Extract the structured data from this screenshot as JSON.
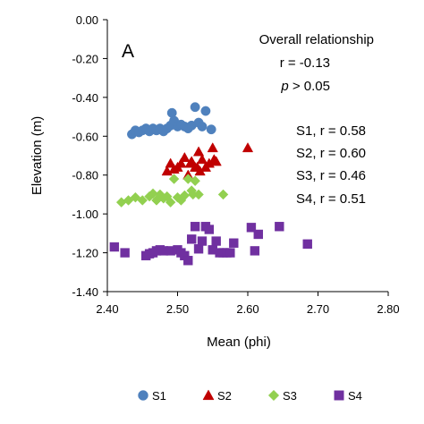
{
  "chart_data": {
    "type": "scatter",
    "panel_label": "A",
    "xlabel": "Mean (phi)",
    "ylabel": "Elevation (m)",
    "xlim": [
      2.4,
      2.8
    ],
    "ylim": [
      -1.4,
      0.0
    ],
    "x_ticks": [
      "2.40",
      "2.50",
      "2.60",
      "2.70",
      "2.80"
    ],
    "y_ticks": [
      "0.00",
      "-0.20",
      "-0.40",
      "-0.60",
      "-0.80",
      "-1.00",
      "-1.20",
      "-1.40"
    ],
    "x_tick_values": [
      2.4,
      2.5,
      2.6,
      2.7,
      2.8
    ],
    "y_tick_values": [
      0.0,
      -0.2,
      -0.4,
      -0.6,
      -0.8,
      -1.0,
      -1.2,
      -1.4
    ],
    "grid": false,
    "legend_position": "bottom",
    "annotations": {
      "overall_title": "Overall relationship",
      "overall_r": "r = -0.13",
      "overall_p_symbol": "p",
      "overall_p_rest": " > 0.05",
      "s1": "S1, r = 0.58",
      "s2": "S2, r = 0.60",
      "s3": "S3, r = 0.46",
      "s4": "S4, r = 0.51"
    },
    "series": [
      {
        "name": "S1",
        "marker": "circle",
        "color": "#4f81bd",
        "points": [
          [
            2.435,
            -0.59
          ],
          [
            2.44,
            -0.57
          ],
          [
            2.445,
            -0.58
          ],
          [
            2.45,
            -0.57
          ],
          [
            2.455,
            -0.56
          ],
          [
            2.46,
            -0.575
          ],
          [
            2.465,
            -0.56
          ],
          [
            2.47,
            -0.57
          ],
          [
            2.475,
            -0.56
          ],
          [
            2.48,
            -0.575
          ],
          [
            2.485,
            -0.56
          ],
          [
            2.49,
            -0.545
          ],
          [
            2.492,
            -0.48
          ],
          [
            2.495,
            -0.52
          ],
          [
            2.5,
            -0.55
          ],
          [
            2.505,
            -0.54
          ],
          [
            2.51,
            -0.55
          ],
          [
            2.515,
            -0.56
          ],
          [
            2.52,
            -0.545
          ],
          [
            2.525,
            -0.45
          ],
          [
            2.53,
            -0.53
          ],
          [
            2.535,
            -0.55
          ],
          [
            2.54,
            -0.47
          ],
          [
            2.548,
            -0.565
          ]
        ]
      },
      {
        "name": "S2",
        "marker": "triangle",
        "color": "#c00000",
        "points": [
          [
            2.485,
            -0.78
          ],
          [
            2.49,
            -0.74
          ],
          [
            2.495,
            -0.77
          ],
          [
            2.5,
            -0.76
          ],
          [
            2.505,
            -0.74
          ],
          [
            2.51,
            -0.71
          ],
          [
            2.515,
            -0.8
          ],
          [
            2.518,
            -0.74
          ],
          [
            2.52,
            -0.73
          ],
          [
            2.525,
            -0.76
          ],
          [
            2.528,
            -0.76
          ],
          [
            2.53,
            -0.68
          ],
          [
            2.532,
            -0.78
          ],
          [
            2.535,
            -0.72
          ],
          [
            2.54,
            -0.76
          ],
          [
            2.545,
            -0.74
          ],
          [
            2.55,
            -0.66
          ],
          [
            2.552,
            -0.72
          ],
          [
            2.555,
            -0.73
          ],
          [
            2.6,
            -0.66
          ]
        ]
      },
      {
        "name": "S3",
        "marker": "diamond",
        "color": "#92d050",
        "points": [
          [
            2.42,
            -0.94
          ],
          [
            2.43,
            -0.93
          ],
          [
            2.44,
            -0.915
          ],
          [
            2.45,
            -0.93
          ],
          [
            2.46,
            -0.91
          ],
          [
            2.465,
            -0.895
          ],
          [
            2.47,
            -0.93
          ],
          [
            2.475,
            -0.9
          ],
          [
            2.48,
            -0.92
          ],
          [
            2.485,
            -0.91
          ],
          [
            2.49,
            -0.94
          ],
          [
            2.495,
            -0.82
          ],
          [
            2.5,
            -0.915
          ],
          [
            2.505,
            -0.93
          ],
          [
            2.51,
            -0.905
          ],
          [
            2.515,
            -0.82
          ],
          [
            2.52,
            -0.88
          ],
          [
            2.522,
            -0.9
          ],
          [
            2.525,
            -0.83
          ],
          [
            2.53,
            -0.9
          ],
          [
            2.565,
            -0.9
          ]
        ]
      },
      {
        "name": "S4",
        "marker": "square",
        "color": "#7030a0",
        "points": [
          [
            2.41,
            -1.17
          ],
          [
            2.425,
            -1.2
          ],
          [
            2.455,
            -1.215
          ],
          [
            2.46,
            -1.205
          ],
          [
            2.465,
            -1.2
          ],
          [
            2.47,
            -1.19
          ],
          [
            2.475,
            -1.185
          ],
          [
            2.48,
            -1.19
          ],
          [
            2.49,
            -1.19
          ],
          [
            2.5,
            -1.185
          ],
          [
            2.505,
            -1.2
          ],
          [
            2.51,
            -1.215
          ],
          [
            2.515,
            -1.24
          ],
          [
            2.52,
            -1.13
          ],
          [
            2.525,
            -1.065
          ],
          [
            2.53,
            -1.18
          ],
          [
            2.535,
            -1.14
          ],
          [
            2.54,
            -1.065
          ],
          [
            2.545,
            -1.08
          ],
          [
            2.55,
            -1.185
          ],
          [
            2.555,
            -1.14
          ],
          [
            2.56,
            -1.2
          ],
          [
            2.565,
            -1.2
          ],
          [
            2.57,
            -1.2
          ],
          [
            2.575,
            -1.2
          ],
          [
            2.58,
            -1.15
          ],
          [
            2.605,
            -1.07
          ],
          [
            2.61,
            -1.19
          ],
          [
            2.615,
            -1.105
          ],
          [
            2.645,
            -1.065
          ],
          [
            2.685,
            -1.155
          ]
        ]
      }
    ]
  }
}
